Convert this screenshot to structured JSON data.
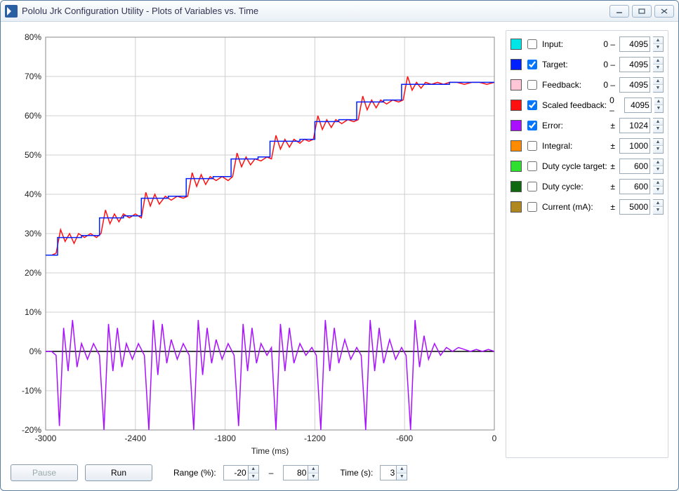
{
  "window": {
    "title": "Pololu Jrk Configuration Utility - Plots of Variables vs. Time"
  },
  "chart": {
    "type": "line",
    "xlabel": "Time (ms)",
    "xlim": [
      -3000,
      0
    ],
    "xtick_step": 600,
    "xticks": [
      -3000,
      -2400,
      -1800,
      -1200,
      -600,
      0
    ],
    "ylim": [
      -20,
      80
    ],
    "ytick_step": 10,
    "yticks": [
      -20,
      -10,
      0,
      10,
      20,
      30,
      40,
      50,
      60,
      70,
      80
    ],
    "ytick_suffix": "%",
    "background_color": "#ffffff",
    "grid_color": "#cfcfcf",
    "zero_line_color": "#000000",
    "series": {
      "target": {
        "color": "#0020ff",
        "points": [
          [
            -3000,
            24.5
          ],
          [
            -2920,
            24.5
          ],
          [
            -2920,
            29
          ],
          [
            -2760,
            29
          ],
          [
            -2760,
            29.5
          ],
          [
            -2640,
            29.5
          ],
          [
            -2640,
            34
          ],
          [
            -2480,
            34
          ],
          [
            -2480,
            34.5
          ],
          [
            -2360,
            34.5
          ],
          [
            -2360,
            39
          ],
          [
            -2180,
            39
          ],
          [
            -2180,
            39.5
          ],
          [
            -2060,
            39.5
          ],
          [
            -2060,
            44
          ],
          [
            -1880,
            44
          ],
          [
            -1880,
            44.5
          ],
          [
            -1760,
            44.5
          ],
          [
            -1760,
            49
          ],
          [
            -1580,
            49
          ],
          [
            -1580,
            49.5
          ],
          [
            -1500,
            49.5
          ],
          [
            -1500,
            53.5
          ],
          [
            -1300,
            53.5
          ],
          [
            -1300,
            54
          ],
          [
            -1200,
            54
          ],
          [
            -1200,
            58.5
          ],
          [
            -1040,
            58.5
          ],
          [
            -1040,
            59
          ],
          [
            -920,
            59
          ],
          [
            -920,
            63.5
          ],
          [
            -740,
            63.5
          ],
          [
            -740,
            64
          ],
          [
            -620,
            64
          ],
          [
            -620,
            68
          ],
          [
            -300,
            68
          ],
          [
            -300,
            68.5
          ],
          [
            0,
            68.5
          ]
        ]
      },
      "scaled_feedback": {
        "color": "#ff1010",
        "points": [
          [
            -3000,
            24.5
          ],
          [
            -2960,
            24.5
          ],
          [
            -2930,
            25
          ],
          [
            -2900,
            31
          ],
          [
            -2870,
            28
          ],
          [
            -2840,
            30
          ],
          [
            -2810,
            27.5
          ],
          [
            -2780,
            30
          ],
          [
            -2740,
            29
          ],
          [
            -2700,
            30
          ],
          [
            -2660,
            29
          ],
          [
            -2630,
            30
          ],
          [
            -2600,
            36
          ],
          [
            -2570,
            32.5
          ],
          [
            -2540,
            35
          ],
          [
            -2510,
            33
          ],
          [
            -2480,
            35
          ],
          [
            -2440,
            34
          ],
          [
            -2400,
            35
          ],
          [
            -2360,
            34
          ],
          [
            -2330,
            40.5
          ],
          [
            -2300,
            37
          ],
          [
            -2270,
            40
          ],
          [
            -2240,
            37.5
          ],
          [
            -2200,
            39.5
          ],
          [
            -2160,
            38.5
          ],
          [
            -2120,
            39.5
          ],
          [
            -2080,
            39
          ],
          [
            -2050,
            39.5
          ],
          [
            -2020,
            45.5
          ],
          [
            -1990,
            42
          ],
          [
            -1960,
            45
          ],
          [
            -1930,
            42.5
          ],
          [
            -1900,
            44.5
          ],
          [
            -1860,
            43.5
          ],
          [
            -1820,
            44.5
          ],
          [
            -1780,
            43.5
          ],
          [
            -1750,
            44.5
          ],
          [
            -1720,
            50.5
          ],
          [
            -1690,
            47
          ],
          [
            -1660,
            49.5
          ],
          [
            -1630,
            47.5
          ],
          [
            -1600,
            49
          ],
          [
            -1560,
            48.5
          ],
          [
            -1520,
            49.5
          ],
          [
            -1490,
            49
          ],
          [
            -1460,
            55
          ],
          [
            -1430,
            51.5
          ],
          [
            -1400,
            54
          ],
          [
            -1370,
            52
          ],
          [
            -1340,
            54
          ],
          [
            -1300,
            53
          ],
          [
            -1270,
            54
          ],
          [
            -1240,
            53.5
          ],
          [
            -1210,
            54
          ],
          [
            -1180,
            60
          ],
          [
            -1150,
            56.5
          ],
          [
            -1120,
            59
          ],
          [
            -1090,
            57
          ],
          [
            -1060,
            59
          ],
          [
            -1020,
            58
          ],
          [
            -980,
            59
          ],
          [
            -940,
            58.5
          ],
          [
            -910,
            59
          ],
          [
            -880,
            65
          ],
          [
            -850,
            61.5
          ],
          [
            -820,
            64
          ],
          [
            -790,
            62
          ],
          [
            -760,
            64
          ],
          [
            -720,
            63
          ],
          [
            -680,
            64
          ],
          [
            -640,
            63.5
          ],
          [
            -610,
            64
          ],
          [
            -580,
            70
          ],
          [
            -550,
            66.5
          ],
          [
            -520,
            68.5
          ],
          [
            -490,
            67
          ],
          [
            -460,
            68.5
          ],
          [
            -420,
            68
          ],
          [
            -380,
            68.5
          ],
          [
            -340,
            68
          ],
          [
            -300,
            68.5
          ],
          [
            -250,
            68.5
          ],
          [
            -200,
            68
          ],
          [
            -150,
            68.5
          ],
          [
            -100,
            68.5
          ],
          [
            -50,
            68
          ],
          [
            0,
            68.5
          ]
        ]
      },
      "error": {
        "color": "#a810ff",
        "points": [
          [
            -3000,
            0
          ],
          [
            -2960,
            0
          ],
          [
            -2930,
            -1
          ],
          [
            -2908,
            -19
          ],
          [
            -2880,
            6
          ],
          [
            -2850,
            -5
          ],
          [
            -2820,
            8
          ],
          [
            -2790,
            -4
          ],
          [
            -2760,
            2
          ],
          [
            -2720,
            -2
          ],
          [
            -2680,
            2
          ],
          [
            -2640,
            -1
          ],
          [
            -2610,
            -20
          ],
          [
            -2580,
            7
          ],
          [
            -2550,
            -5
          ],
          [
            -2520,
            6
          ],
          [
            -2490,
            -4
          ],
          [
            -2460,
            2
          ],
          [
            -2420,
            -2
          ],
          [
            -2380,
            2
          ],
          [
            -2340,
            -1
          ],
          [
            -2310,
            -20
          ],
          [
            -2280,
            8
          ],
          [
            -2250,
            -6
          ],
          [
            -2220,
            7
          ],
          [
            -2190,
            -3
          ],
          [
            -2160,
            3
          ],
          [
            -2120,
            -2
          ],
          [
            -2080,
            2
          ],
          [
            -2040,
            -1
          ],
          [
            -2010,
            -20
          ],
          [
            -1980,
            8
          ],
          [
            -1950,
            -6
          ],
          [
            -1920,
            6
          ],
          [
            -1890,
            -3
          ],
          [
            -1860,
            3
          ],
          [
            -1820,
            -2
          ],
          [
            -1780,
            2
          ],
          [
            -1740,
            -1
          ],
          [
            -1710,
            -19
          ],
          [
            -1680,
            7
          ],
          [
            -1650,
            -5
          ],
          [
            -1620,
            6
          ],
          [
            -1590,
            -3
          ],
          [
            -1560,
            2
          ],
          [
            -1520,
            -1
          ],
          [
            -1490,
            1
          ],
          [
            -1460,
            -20
          ],
          [
            -1430,
            7
          ],
          [
            -1400,
            -5
          ],
          [
            -1370,
            6
          ],
          [
            -1340,
            -3
          ],
          [
            -1300,
            2
          ],
          [
            -1260,
            -1
          ],
          [
            -1220,
            1
          ],
          [
            -1190,
            -1
          ],
          [
            -1160,
            -20
          ],
          [
            -1130,
            8
          ],
          [
            -1100,
            -5
          ],
          [
            -1070,
            6
          ],
          [
            -1040,
            -3
          ],
          [
            -1000,
            3
          ],
          [
            -960,
            -2
          ],
          [
            -920,
            1
          ],
          [
            -890,
            -1
          ],
          [
            -860,
            -20
          ],
          [
            -830,
            8
          ],
          [
            -800,
            -5
          ],
          [
            -770,
            6
          ],
          [
            -740,
            -3
          ],
          [
            -700,
            3
          ],
          [
            -660,
            -2
          ],
          [
            -620,
            1
          ],
          [
            -590,
            -1
          ],
          [
            -560,
            -20
          ],
          [
            -530,
            8
          ],
          [
            -500,
            -4
          ],
          [
            -470,
            4
          ],
          [
            -440,
            -2
          ],
          [
            -400,
            2
          ],
          [
            -360,
            -1
          ],
          [
            -320,
            1
          ],
          [
            -280,
            0
          ],
          [
            -240,
            1
          ],
          [
            -200,
            0.5
          ],
          [
            -160,
            0
          ],
          [
            -120,
            0.5
          ],
          [
            -80,
            0
          ],
          [
            -40,
            0.5
          ],
          [
            0,
            0
          ]
        ]
      }
    }
  },
  "legend": {
    "items": [
      {
        "color": "#00e5e5",
        "label": "Input:",
        "checked": false,
        "prefix": "0 –",
        "value": "4095"
      },
      {
        "color": "#0020ff",
        "label": "Target:",
        "checked": true,
        "prefix": "0 –",
        "value": "4095"
      },
      {
        "color": "#ffc6d8",
        "label": "Feedback:",
        "checked": false,
        "prefix": "0 –",
        "value": "4095"
      },
      {
        "color": "#ff1010",
        "label": "Scaled feedback:",
        "checked": true,
        "prefix": "0 –",
        "value": "4095"
      },
      {
        "color": "#a810ff",
        "label": "Error:",
        "checked": true,
        "prefix": "±",
        "value": "1024"
      },
      {
        "color": "#ff8c00",
        "label": "Integral:",
        "checked": false,
        "prefix": "±",
        "value": "1000"
      },
      {
        "color": "#30e030",
        "label": "Duty cycle target:",
        "checked": false,
        "prefix": "±",
        "value": "600"
      },
      {
        "color": "#106810",
        "label": "Duty cycle:",
        "checked": false,
        "prefix": "±",
        "value": "600"
      },
      {
        "color": "#b08820",
        "label": "Current (mA):",
        "checked": false,
        "prefix": "±",
        "value": "5000"
      }
    ]
  },
  "controls": {
    "pause_label": "Pause",
    "run_label": "Run",
    "range_label": "Range (%):",
    "range_min": "-20",
    "range_sep": "–",
    "range_max": "80",
    "time_label": "Time (s):",
    "time_value": "3"
  }
}
